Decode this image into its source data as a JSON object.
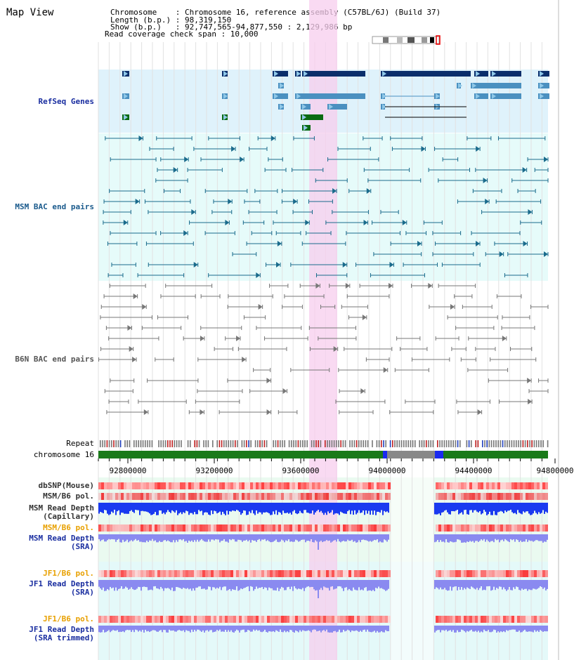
{
  "header": {
    "title": "Map View",
    "info_lines": [
      "Chromosome    : Chromosome 16, reference assembly (C57BL/6J) (Build 37)",
      "Length (b.p.) : 98,319,150",
      "Show (b.p.)   : 92,747,565-94,877,550 : 2,129,986 bp",
      "Read coverage check span : 10,000"
    ]
  },
  "tracks": {
    "refseq": "RefSeq Genes",
    "msm_bac": "MSM BAC end pairs",
    "b6n_bac": "B6N BAC end pairs",
    "repeat": "Repeat",
    "chromosome": "chromosome 16",
    "dbsnp": "dbSNP(Mouse)",
    "msm_b6_pol": "MSM/B6 pol.",
    "msm_depth_cap": [
      "MSM Read Depth",
      "(Capillary)"
    ],
    "msm_b6_pol_sra": "MSM/B6 pol.",
    "msm_depth_sra": [
      "MSM Read Depth",
      "(SRA)"
    ],
    "jf1_b6_pol": "JF1/B6 pol.",
    "jf1_depth_sra": [
      "JF1 Read Depth",
      "(SRA)"
    ],
    "jf1_b6_pol_trim": "JF1/B6 pol.",
    "jf1_depth_trim": [
      "JF1 Read Depth",
      "(SRA trimmed)"
    ]
  },
  "axis": {
    "ticks": [
      "92800000",
      "93200000",
      "93600000",
      "94000000",
      "94400000",
      "94800000"
    ]
  },
  "colors": {
    "gene_dark": "#0b2e6b",
    "gene_mid": "#4a90c0",
    "gene_green": "#0a6b12",
    "msm_bac": "#1a6b8c",
    "b6n_bac": "#777777",
    "highlight": "#f7cdee",
    "chrom_green": "#1a7a1a",
    "depth_blue": "#1a3af0",
    "depth_light": "#8a8af0"
  }
}
